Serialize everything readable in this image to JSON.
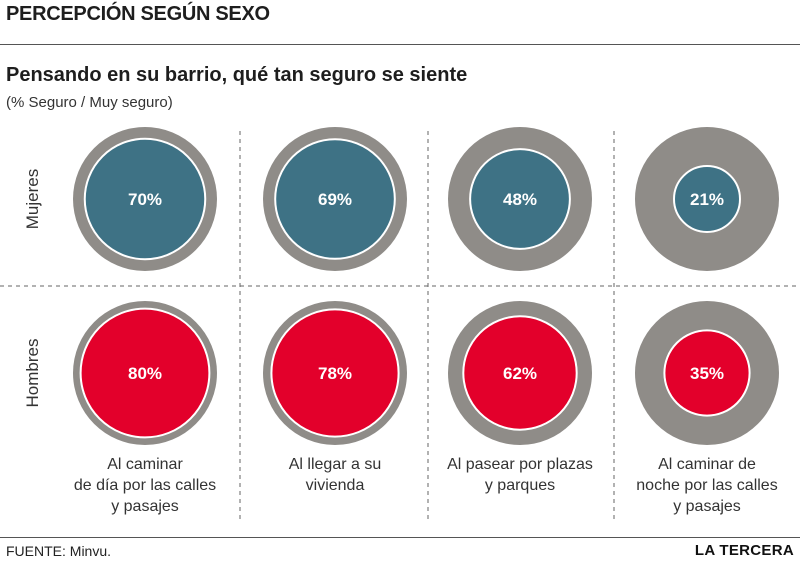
{
  "header": {
    "title": "PERCEPCIÓN SEGÚN SEXO"
  },
  "subtitle": "Pensando en su barrio, qué tan seguro se siente",
  "unit_note": "(% Seguro / Muy seguro)",
  "footer": {
    "source": "FUENTE:  Minvu.",
    "brand": "LA TERCERA"
  },
  "colors": {
    "mujeres": "#3e7285",
    "hombres": "#e3002b",
    "ring": "#8f8c88",
    "ring_border": "#ffffff"
  },
  "chart_data": {
    "type": "proportional-circles",
    "categories": [
      [
        "Al caminar",
        "de día por las calles",
        "y pasajes"
      ],
      [
        "Al llegar a su",
        "vivienda"
      ],
      [
        "Al pasear por plazas",
        "y parques"
      ],
      [
        "Al caminar de",
        "noche por las calles",
        "y pasajes"
      ]
    ],
    "series": [
      {
        "name": "Mujeres",
        "values": [
          70,
          69,
          48,
          21
        ],
        "labels": [
          "70%",
          "69%",
          "48%",
          "21%"
        ]
      },
      {
        "name": "Hombres",
        "values": [
          80,
          78,
          62,
          35
        ],
        "labels": [
          "80%",
          "78%",
          "62%",
          "35%"
        ]
      }
    ],
    "max": 100,
    "grid": false
  }
}
